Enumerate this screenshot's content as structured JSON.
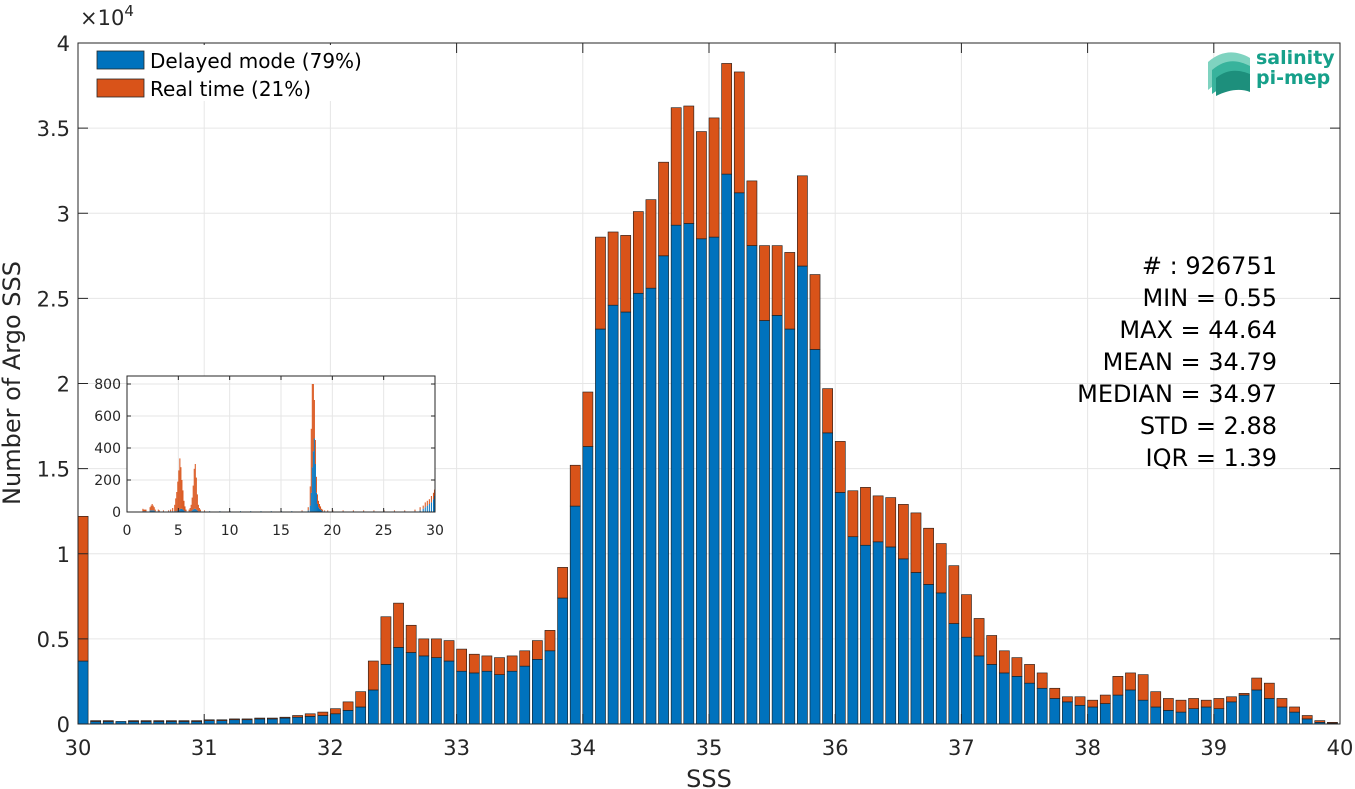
{
  "colors": {
    "delayed": "#0072BD",
    "realtime": "#D95319",
    "grid": "#e6e6e6",
    "axis": "#262626"
  },
  "logo": {
    "line1": "salinity",
    "line2": "pi-mep"
  },
  "stats": [
    "# : 926751",
    "MIN = 0.55",
    "MAX =  44.64",
    "MEAN = 34.79",
    "MEDIAN = 34.97",
    "STD = 2.88",
    "IQR = 1.39"
  ],
  "chart_data": [
    {
      "type": "bar",
      "stacked": true,
      "xlabel": "SSS",
      "ylabel": "Number of Argo SSS",
      "exponent_label": "×10",
      "exponent_power": "4",
      "xlim": [
        30,
        40
      ],
      "ylim": [
        0,
        40000
      ],
      "xticks": [
        30,
        31,
        32,
        33,
        34,
        35,
        36,
        37,
        38,
        39,
        40
      ],
      "yticks": [
        0,
        5000,
        10000,
        15000,
        20000,
        25000,
        30000,
        35000,
        40000
      ],
      "ytick_labels": [
        "0",
        "0.5",
        "1",
        "1.5",
        "2",
        "2.5",
        "3",
        "3.5",
        "4"
      ],
      "grid": true,
      "legend_position": "top-left",
      "bin_width": 0.1,
      "x": [
        30.0,
        30.1,
        30.2,
        30.3,
        30.4,
        30.5,
        30.6,
        30.7,
        30.8,
        30.9,
        31.0,
        31.1,
        31.2,
        31.3,
        31.4,
        31.5,
        31.6,
        31.7,
        31.8,
        31.9,
        32.0,
        32.1,
        32.2,
        32.3,
        32.4,
        32.5,
        32.6,
        32.7,
        32.8,
        32.9,
        33.0,
        33.1,
        33.2,
        33.3,
        33.4,
        33.5,
        33.6,
        33.7,
        33.8,
        33.9,
        34.0,
        34.1,
        34.2,
        34.3,
        34.4,
        34.5,
        34.6,
        34.7,
        34.8,
        34.9,
        35.0,
        35.1,
        35.2,
        35.3,
        35.4,
        35.5,
        35.6,
        35.7,
        35.8,
        35.9,
        36.0,
        36.1,
        36.2,
        36.3,
        36.4,
        36.5,
        36.6,
        36.7,
        36.8,
        36.9,
        37.0,
        37.1,
        37.2,
        37.3,
        37.4,
        37.5,
        37.6,
        37.7,
        37.8,
        37.9,
        38.0,
        38.1,
        38.2,
        38.3,
        38.4,
        38.5,
        38.6,
        38.7,
        38.8,
        38.9,
        39.0,
        39.1,
        39.2,
        39.3,
        39.4,
        39.5,
        39.6,
        39.7,
        39.8,
        39.9,
        40.0
      ],
      "series": [
        {
          "name": "Delayed mode (79%)",
          "values": [
            3700,
            150,
            150,
            150,
            150,
            150,
            150,
            150,
            150,
            150,
            200,
            200,
            250,
            250,
            300,
            300,
            350,
            400,
            450,
            500,
            600,
            800,
            1000,
            2000,
            3500,
            4500,
            4200,
            4000,
            3900,
            3700,
            3100,
            3000,
            3100,
            2900,
            3100,
            3400,
            3800,
            4300,
            7400,
            12800,
            16300,
            23200,
            24600,
            24200,
            25300,
            25600,
            27500,
            29300,
            29400,
            28500,
            28600,
            32300,
            31200,
            28100,
            23700,
            24000,
            23200,
            26900,
            22000,
            17100,
            13600,
            11000,
            10500,
            10700,
            10400,
            9700,
            8900,
            8200,
            7700,
            5900,
            5100,
            4000,
            3500,
            3000,
            2800,
            2400,
            2100,
            1500,
            1300,
            1100,
            1000,
            1200,
            1700,
            2000,
            1400,
            1000,
            800,
            700,
            900,
            1000,
            900,
            1300,
            1700,
            2000,
            1500,
            1000,
            700,
            300,
            100,
            50,
            50
          ],
          "color": "#0072BD"
        },
        {
          "name": "Real time (21%)",
          "values": [
            8500,
            50,
            50,
            0,
            50,
            50,
            50,
            50,
            50,
            50,
            50,
            50,
            50,
            50,
            50,
            50,
            50,
            100,
            150,
            200,
            300,
            500,
            900,
            1700,
            2800,
            2600,
            1600,
            1000,
            1100,
            1200,
            1300,
            1100,
            900,
            1000,
            900,
            900,
            1100,
            1200,
            1800,
            2400,
            3200,
            5400,
            4300,
            4500,
            4800,
            5200,
            5500,
            6900,
            6900,
            6300,
            7000,
            6500,
            7100,
            3800,
            4400,
            4100,
            4500,
            5300,
            4400,
            2600,
            3000,
            2700,
            3400,
            2700,
            2900,
            3200,
            3500,
            3300,
            2900,
            3400,
            2500,
            2200,
            1700,
            1300,
            1100,
            1100,
            900,
            600,
            300,
            500,
            400,
            500,
            1100,
            1000,
            1500,
            900,
            700,
            700,
            600,
            400,
            600,
            300,
            100,
            700,
            900,
            500,
            300,
            200,
            100,
            50,
            50
          ],
          "color": "#D95319"
        }
      ]
    },
    {
      "type": "bar",
      "stacked": true,
      "inset": true,
      "xlim": [
        0,
        30
      ],
      "ylim": [
        0,
        850
      ],
      "xticks": [
        0,
        5,
        10,
        15,
        20,
        25,
        30
      ],
      "yticks": [
        0,
        200,
        400,
        600,
        800
      ],
      "grid": true,
      "bin_width": 0.1,
      "x": [
        1.5,
        1.6,
        1.7,
        1.8,
        2.2,
        2.3,
        2.4,
        2.5,
        2.6,
        2.7,
        3.0,
        3.1,
        3.5,
        4.0,
        4.2,
        4.4,
        4.6,
        4.7,
        4.8,
        4.9,
        5.0,
        5.1,
        5.2,
        5.3,
        5.4,
        5.5,
        5.6,
        5.7,
        6.0,
        6.1,
        6.2,
        6.3,
        6.4,
        6.5,
        6.6,
        6.7,
        6.8,
        6.9,
        7.0,
        7.1,
        7.5,
        8.0,
        9.0,
        10.0,
        11.0,
        12.0,
        13.0,
        14.0,
        15.0,
        16.0,
        17.0,
        17.6,
        17.8,
        17.9,
        18.0,
        18.1,
        18.2,
        18.3,
        18.4,
        18.5,
        18.6,
        18.7,
        18.8,
        18.9,
        19.0,
        19.2,
        19.5,
        20.0,
        21.0,
        22.0,
        23.0,
        24.0,
        25.0,
        26.0,
        27.0,
        28.0,
        28.5,
        28.8,
        29.0,
        29.2,
        29.4,
        29.6,
        29.8,
        29.9
      ],
      "series": [
        {
          "name": "Delayed mode (79%)",
          "values": [
            5,
            5,
            5,
            5,
            10,
            10,
            10,
            10,
            10,
            5,
            5,
            5,
            5,
            5,
            5,
            5,
            5,
            5,
            5,
            10,
            10,
            15,
            20,
            20,
            15,
            10,
            5,
            5,
            5,
            5,
            5,
            10,
            15,
            20,
            20,
            15,
            10,
            5,
            5,
            5,
            5,
            5,
            5,
            5,
            5,
            5,
            5,
            5,
            5,
            5,
            5,
            10,
            40,
            120,
            280,
            380,
            460,
            300,
            120,
            50,
            30,
            20,
            15,
            10,
            5,
            5,
            5,
            5,
            5,
            5,
            5,
            5,
            5,
            5,
            5,
            5,
            10,
            20,
            30,
            40,
            50,
            60,
            80,
            100
          ],
          "color": "#0072BD"
        },
        {
          "name": "Real time (21%)",
          "values": [
            15,
            10,
            10,
            10,
            20,
            30,
            40,
            30,
            20,
            10,
            10,
            5,
            5,
            5,
            10,
            20,
            40,
            80,
            120,
            180,
            250,
            320,
            260,
            180,
            120,
            60,
            30,
            10,
            10,
            20,
            40,
            80,
            150,
            250,
            280,
            200,
            100,
            40,
            20,
            10,
            5,
            0,
            0,
            0,
            0,
            0,
            0,
            0,
            0,
            0,
            5,
            20,
            120,
            400,
            520,
            420,
            240,
            150,
            100,
            60,
            40,
            30,
            20,
            10,
            10,
            5,
            5,
            5,
            5,
            5,
            5,
            5,
            5,
            5,
            5,
            10,
            20,
            20,
            30,
            30,
            30,
            40,
            40,
            40
          ],
          "color": "#D95319"
        }
      ]
    }
  ]
}
